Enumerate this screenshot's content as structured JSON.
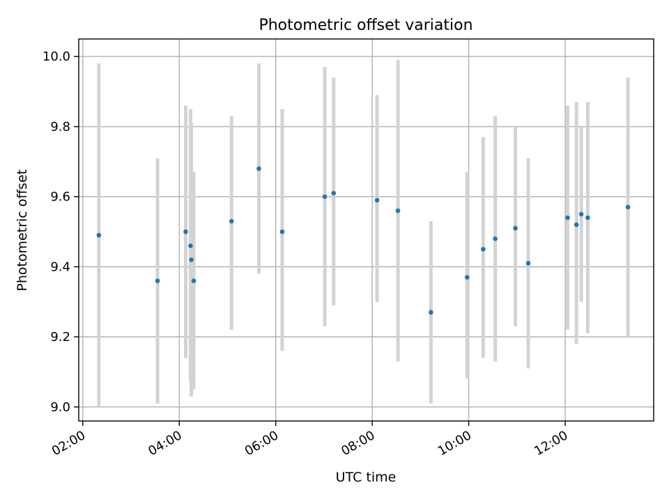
{
  "chart_data": {
    "type": "scatter",
    "title": "Photometric offset variation",
    "xlabel": "UTC time",
    "ylabel": "Photometric offset",
    "xlim": [
      "01:55",
      "13:50"
    ],
    "ylim": [
      8.96,
      10.05
    ],
    "x_ticks": [
      "02:00",
      "04:00",
      "06:00",
      "08:00",
      "10:00",
      "12:00"
    ],
    "y_ticks": [
      "9.0",
      "9.2",
      "9.4",
      "9.6",
      "9.8",
      "10.0"
    ],
    "grid": true,
    "marker_color": "#1f77b4",
    "errorbar_color": "#d3d3d3",
    "points": [
      {
        "x": "02:20",
        "y": 9.49,
        "low": 9.0,
        "high": 9.98
      },
      {
        "x": "03:33",
        "y": 9.36,
        "low": 9.01,
        "high": 9.71
      },
      {
        "x": "04:08",
        "y": 9.5,
        "low": 9.14,
        "high": 9.86
      },
      {
        "x": "04:14",
        "y": 9.46,
        "low": 9.07,
        "high": 9.85
      },
      {
        "x": "04:15",
        "y": 9.42,
        "low": 9.03,
        "high": 9.81
      },
      {
        "x": "04:18",
        "y": 9.36,
        "low": 9.05,
        "high": 9.67
      },
      {
        "x": "05:05",
        "y": 9.53,
        "low": 9.22,
        "high": 9.83
      },
      {
        "x": "05:39",
        "y": 9.68,
        "low": 9.38,
        "high": 9.98
      },
      {
        "x": "06:08",
        "y": 9.5,
        "low": 9.16,
        "high": 9.85
      },
      {
        "x": "07:01",
        "y": 9.6,
        "low": 9.23,
        "high": 9.97
      },
      {
        "x": "07:12",
        "y": 9.61,
        "low": 9.29,
        "high": 9.94
      },
      {
        "x": "08:06",
        "y": 9.59,
        "low": 9.3,
        "high": 9.89
      },
      {
        "x": "08:32",
        "y": 9.56,
        "low": 9.13,
        "high": 9.99
      },
      {
        "x": "09:13",
        "y": 9.27,
        "low": 9.01,
        "high": 9.53
      },
      {
        "x": "09:58",
        "y": 9.37,
        "low": 9.08,
        "high": 9.67
      },
      {
        "x": "10:18",
        "y": 9.45,
        "low": 9.14,
        "high": 9.77
      },
      {
        "x": "10:33",
        "y": 9.48,
        "low": 9.13,
        "high": 9.83
      },
      {
        "x": "10:58",
        "y": 9.51,
        "low": 9.23,
        "high": 9.8
      },
      {
        "x": "11:14",
        "y": 9.41,
        "low": 9.11,
        "high": 9.71
      },
      {
        "x": "12:03",
        "y": 9.54,
        "low": 9.22,
        "high": 9.86
      },
      {
        "x": "12:14",
        "y": 9.52,
        "low": 9.18,
        "high": 9.87
      },
      {
        "x": "12:20",
        "y": 9.55,
        "low": 9.3,
        "high": 9.8
      },
      {
        "x": "12:28",
        "y": 9.54,
        "low": 9.21,
        "high": 9.87
      },
      {
        "x": "13:18",
        "y": 9.57,
        "low": 9.2,
        "high": 9.94
      }
    ]
  }
}
